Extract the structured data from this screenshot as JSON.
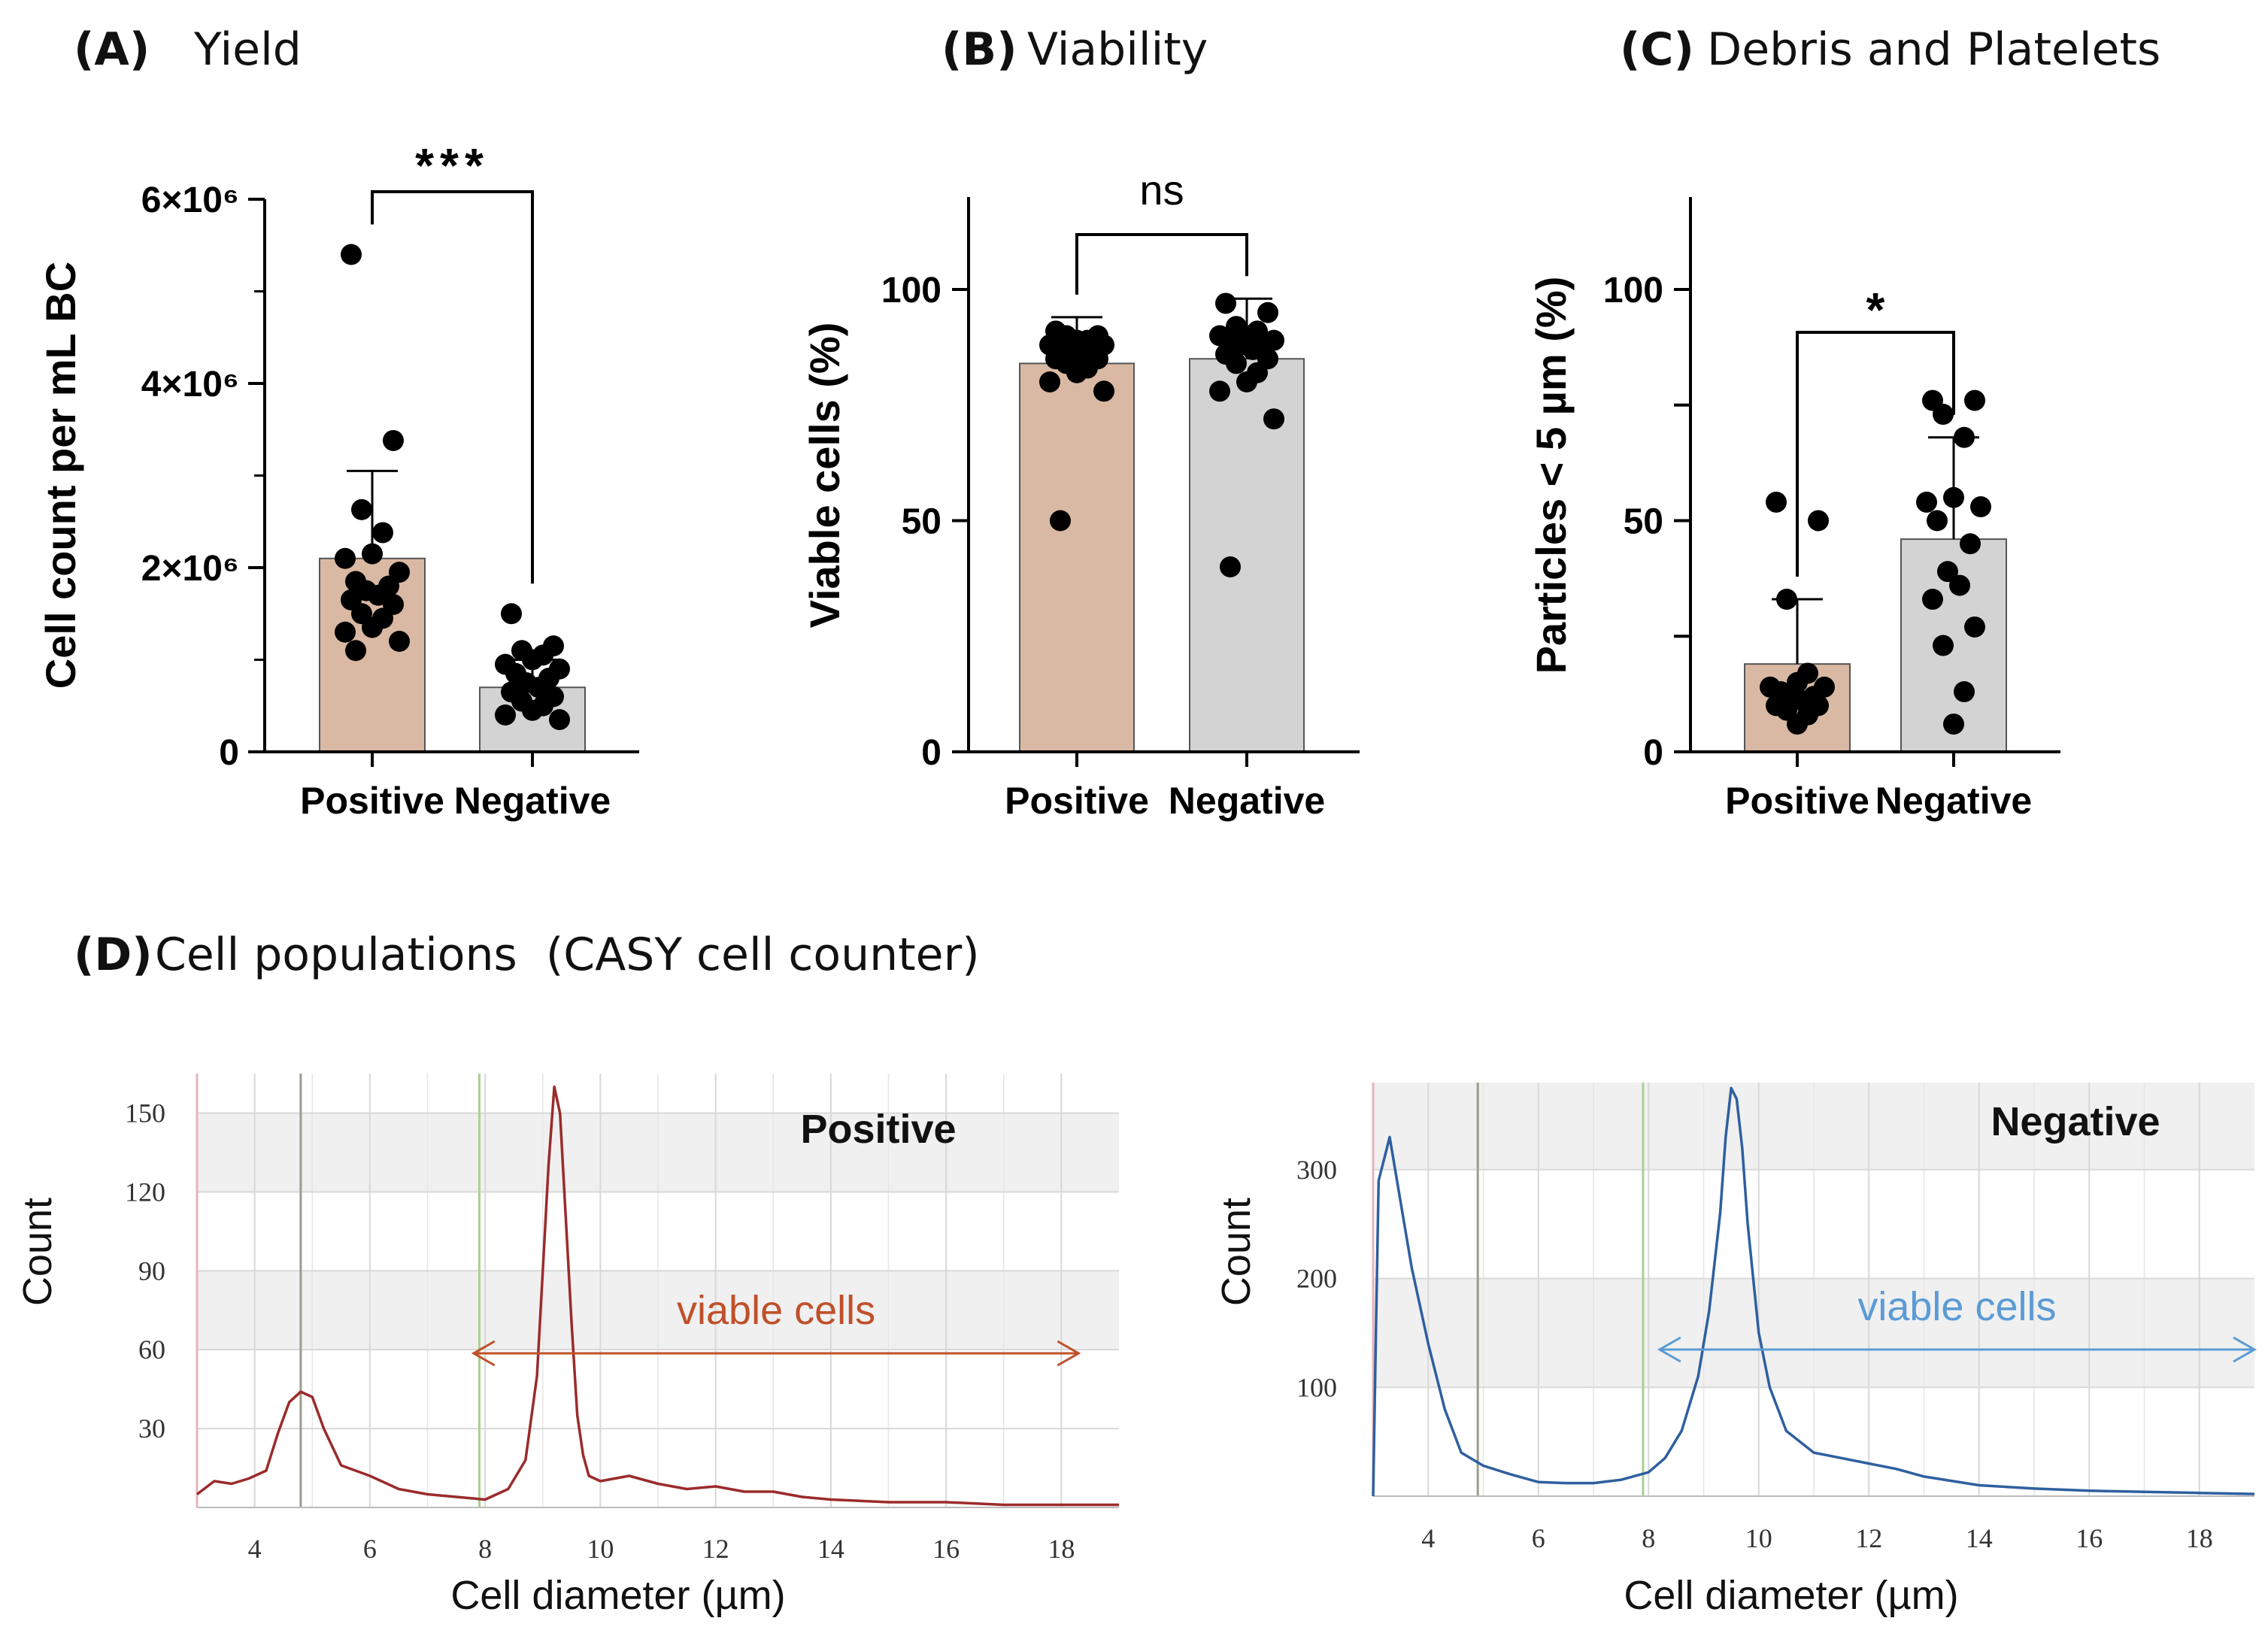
{
  "figure": {
    "panel_a": {
      "letter": "(A)",
      "title": "Yield"
    },
    "panel_b": {
      "letter": "(B)",
      "title": "Viability"
    },
    "panel_c": {
      "letter": "(C)",
      "title": "Debris and Platelets"
    },
    "panel_d": {
      "letter": "(D)",
      "title": "Cell populations  (CASY cell counter)"
    }
  },
  "colors": {
    "positive_bar": "#D9B9A3",
    "negative_bar": "#D3D3D3",
    "positive_line": "#9B2B2B",
    "negative_line": "#2F5F9F",
    "positive_arrow": "#C0502A",
    "negative_arrow": "#5B9BD5",
    "band": "#F0F0F0",
    "grid": "#D8D8D8"
  },
  "chart_data": [
    {
      "id": "A",
      "type": "bar",
      "title": "Yield",
      "ylabel": "Cell count per mL BC",
      "ylim": [
        0,
        6000000
      ],
      "yticks": [
        0,
        2000000,
        4000000,
        6000000
      ],
      "ytick_labels": [
        "0",
        "2×10⁶",
        "4×10⁶",
        "6×10⁶"
      ],
      "categories": [
        "Positive",
        "Negative"
      ],
      "values": [
        2100000,
        700000
      ],
      "error_upper": [
        3050000,
        1000000
      ],
      "points": [
        [
          5400000,
          3380000,
          2630000,
          2380000,
          2150000,
          2100000,
          1950000,
          1850000,
          1800000,
          1750000,
          1700000,
          1650000,
          1600000,
          1500000,
          1450000,
          1350000,
          1300000,
          1200000,
          1100000
        ],
        [
          1500000,
          1150000,
          1100000,
          1050000,
          1000000,
          950000,
          900000,
          850000,
          800000,
          750000,
          700000,
          650000,
          600000,
          550000,
          500000,
          450000,
          400000,
          350000
        ]
      ],
      "significance": "***"
    },
    {
      "id": "B",
      "type": "bar",
      "title": "Viability",
      "ylabel": "Viable cells (%)",
      "ylim": [
        0,
        120
      ],
      "yticks": [
        0,
        50,
        100
      ],
      "ytick_labels": [
        "0",
        "50",
        "100"
      ],
      "categories": [
        "Positive",
        "Negative"
      ],
      "values": [
        84,
        85
      ],
      "error_upper": [
        94,
        98
      ],
      "points": [
        [
          91,
          90,
          90,
          89,
          89,
          88,
          88,
          87,
          87,
          86,
          86,
          85,
          85,
          84,
          83,
          82,
          80,
          78,
          50
        ],
        [
          97,
          95,
          92,
          91,
          90,
          90,
          89,
          89,
          88,
          88,
          87,
          86,
          85,
          84,
          82,
          80,
          78,
          72,
          40
        ]
      ],
      "significance": "ns"
    },
    {
      "id": "C",
      "type": "bar",
      "title": "Debris and Platelets",
      "ylabel": "Particles < 5 µm (%)",
      "ylim": [
        0,
        120
      ],
      "yticks": [
        0,
        25,
        50,
        75,
        100
      ],
      "ytick_labels": [
        "0",
        "",
        "50",
        "",
        "100"
      ],
      "categories": [
        "Positive",
        "Negative"
      ],
      "values": [
        19,
        46
      ],
      "error_upper": [
        33,
        68
      ],
      "points": [
        [
          54,
          50,
          33,
          17,
          15,
          14,
          14,
          13,
          12,
          12,
          11,
          10,
          10,
          9,
          8,
          6
        ],
        [
          76,
          76,
          73,
          68,
          55,
          54,
          53,
          50,
          45,
          39,
          36,
          33,
          27,
          23,
          13,
          6
        ]
      ],
      "significance": "*"
    },
    {
      "id": "D-positive",
      "type": "line",
      "title": "Positive",
      "xlabel": "Cell diameter (µm)",
      "ylabel": "Count",
      "xlim": [
        3,
        19
      ],
      "ylim": [
        0,
        165
      ],
      "xticks": [
        4,
        6,
        8,
        10,
        12,
        14,
        16,
        18
      ],
      "yticks": [
        30,
        60,
        90,
        120,
        150
      ],
      "marker_lines": [
        3,
        4.8,
        7.9
      ],
      "annotation": "viable cells",
      "annotation_range": [
        7.8,
        18.3
      ],
      "x": [
        3.0,
        3.3,
        3.6,
        3.9,
        4.2,
        4.4,
        4.6,
        4.8,
        5.0,
        5.2,
        5.5,
        6.0,
        6.5,
        7.0,
        7.5,
        8.0,
        8.4,
        8.7,
        8.9,
        9.0,
        9.1,
        9.2,
        9.3,
        9.4,
        9.5,
        9.6,
        9.7,
        9.8,
        10.0,
        10.5,
        11.0,
        11.5,
        12.0,
        12.5,
        13.0,
        13.5,
        14.0,
        15.0,
        16.0,
        17.0,
        18.0,
        19.0
      ],
      "y": [
        5,
        10,
        9,
        11,
        14,
        28,
        40,
        44,
        42,
        30,
        16,
        12,
        7,
        5,
        4,
        3,
        7,
        18,
        50,
        90,
        130,
        160,
        150,
        110,
        70,
        35,
        20,
        12,
        10,
        12,
        9,
        7,
        8,
        6,
        6,
        4,
        3,
        2,
        2,
        1,
        1,
        1
      ]
    },
    {
      "id": "D-negative",
      "type": "line",
      "title": "Negative",
      "xlabel": "Cell diameter (µm)",
      "ylabel": "Count",
      "xlim": [
        3,
        19
      ],
      "ylim": [
        0,
        380
      ],
      "xticks": [
        4,
        6,
        8,
        10,
        12,
        14,
        16,
        18
      ],
      "yticks": [
        100,
        200,
        300
      ],
      "marker_lines": [
        3,
        4.9,
        7.9
      ],
      "annotation": "viable cells",
      "annotation_range": [
        8.2,
        19.0
      ],
      "x": [
        3.0,
        3.05,
        3.1,
        3.2,
        3.3,
        3.4,
        3.5,
        3.7,
        4.0,
        4.3,
        4.6,
        5.0,
        5.5,
        6.0,
        6.5,
        7.0,
        7.5,
        8.0,
        8.3,
        8.6,
        8.9,
        9.1,
        9.3,
        9.4,
        9.5,
        9.6,
        9.7,
        9.8,
        10.0,
        10.2,
        10.5,
        11.0,
        11.5,
        12.0,
        12.5,
        13.0,
        14.0,
        15.0,
        16.0,
        17.0,
        18.0,
        19.0
      ],
      "y": [
        0,
        150,
        290,
        310,
        330,
        300,
        270,
        210,
        140,
        80,
        40,
        28,
        20,
        13,
        12,
        12,
        15,
        22,
        35,
        60,
        110,
        170,
        260,
        330,
        375,
        365,
        320,
        250,
        150,
        100,
        60,
        40,
        35,
        30,
        25,
        18,
        10,
        7,
        5,
        4,
        3,
        2
      ]
    }
  ]
}
